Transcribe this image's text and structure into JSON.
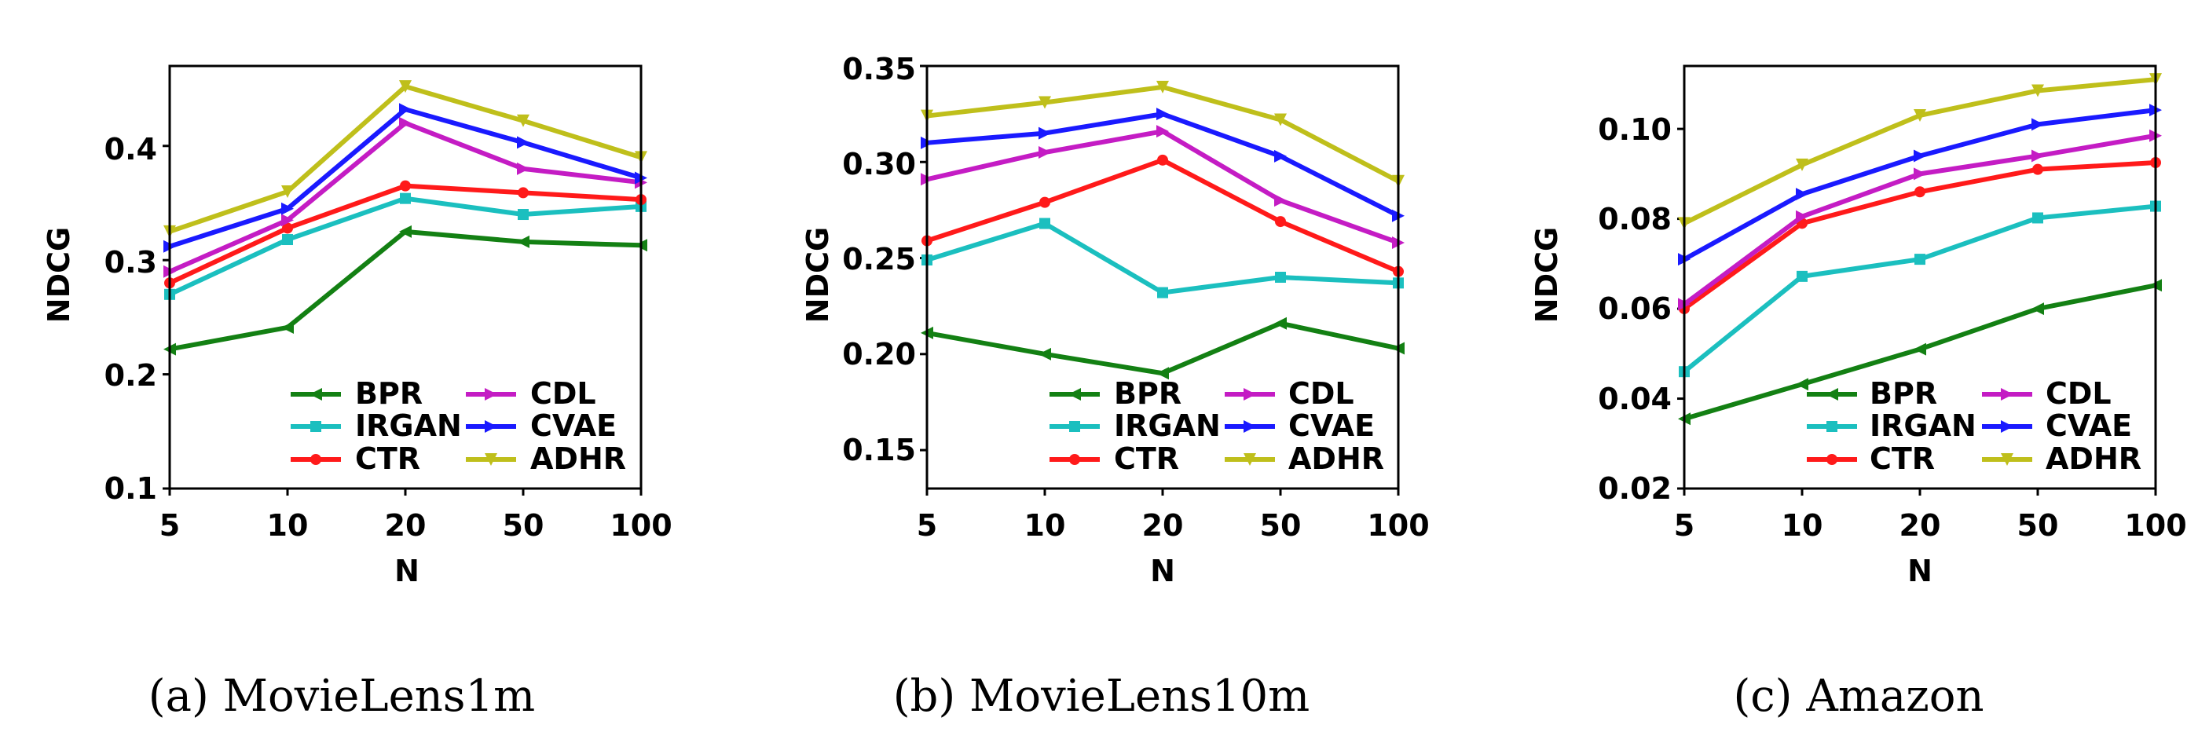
{
  "chart_data": [
    {
      "type": "line",
      "caption": "(a) MovieLens1m",
      "xlabel": "N",
      "ylabel": "NDCG",
      "categories": [
        "5",
        "10",
        "20",
        "50",
        "100"
      ],
      "ylim": [
        0.1,
        0.47
      ],
      "yticks": [
        0.1,
        0.2,
        0.3,
        0.4
      ],
      "ytick_labels": [
        "0.1",
        "0.2",
        "0.3",
        "0.4"
      ],
      "legend_location": "bottom-right",
      "series": [
        {
          "name": "BPR",
          "color": "#138013",
          "marker": "triangle-left",
          "values": [
            0.222,
            0.241,
            0.325,
            0.316,
            0.313
          ]
        },
        {
          "name": "IRGAN",
          "color": "#1bbfbf",
          "marker": "square",
          "values": [
            0.27,
            0.318,
            0.354,
            0.34,
            0.347
          ]
        },
        {
          "name": "CTR",
          "color": "#ff1a1a",
          "marker": "circle",
          "values": [
            0.28,
            0.328,
            0.365,
            0.359,
            0.353
          ]
        },
        {
          "name": "CDL",
          "color": "#c41cc4",
          "marker": "triangle-right",
          "values": [
            0.29,
            0.335,
            0.42,
            0.38,
            0.368
          ]
        },
        {
          "name": "CVAE",
          "color": "#1a1aff",
          "marker": "triangle-right",
          "values": [
            0.312,
            0.345,
            0.432,
            0.403,
            0.372
          ]
        },
        {
          "name": "ADHR",
          "color": "#bfbf1b",
          "marker": "triangle-down",
          "values": [
            0.325,
            0.36,
            0.452,
            0.422,
            0.39
          ]
        }
      ]
    },
    {
      "type": "line",
      "caption": "(b) MovieLens10m",
      "xlabel": "N",
      "ylabel": "NDCG",
      "categories": [
        "5",
        "10",
        "20",
        "50",
        "100"
      ],
      "ylim": [
        0.13,
        0.35
      ],
      "yticks": [
        0.15,
        0.2,
        0.25,
        0.3,
        0.35
      ],
      "ytick_labels": [
        "0.15",
        "0.20",
        "0.25",
        "0.30",
        "0.35"
      ],
      "legend_location": "bottom-right",
      "series": [
        {
          "name": "BPR",
          "color": "#138013",
          "marker": "triangle-left",
          "values": [
            0.211,
            0.2,
            0.19,
            0.216,
            0.203
          ]
        },
        {
          "name": "IRGAN",
          "color": "#1bbfbf",
          "marker": "square",
          "values": [
            0.249,
            0.268,
            0.232,
            0.24,
            0.237
          ]
        },
        {
          "name": "CTR",
          "color": "#ff1a1a",
          "marker": "circle",
          "values": [
            0.259,
            0.279,
            0.301,
            0.269,
            0.243
          ]
        },
        {
          "name": "CDL",
          "color": "#c41cc4",
          "marker": "triangle-right",
          "values": [
            0.291,
            0.305,
            0.316,
            0.28,
            0.258
          ]
        },
        {
          "name": "CVAE",
          "color": "#1a1aff",
          "marker": "triangle-right",
          "values": [
            0.31,
            0.315,
            0.325,
            0.303,
            0.272
          ]
        },
        {
          "name": "ADHR",
          "color": "#bfbf1b",
          "marker": "triangle-down",
          "values": [
            0.324,
            0.331,
            0.339,
            0.322,
            0.29
          ]
        }
      ]
    },
    {
      "type": "line",
      "caption": "(c) Amazon",
      "xlabel": "N",
      "ylabel": "NDCG",
      "categories": [
        "5",
        "10",
        "20",
        "50",
        "100"
      ],
      "ylim": [
        0.02,
        0.114
      ],
      "yticks": [
        0.02,
        0.04,
        0.06,
        0.08,
        0.1
      ],
      "ytick_labels": [
        "0.02",
        "0.04",
        "0.06",
        "0.08",
        "0.10"
      ],
      "legend_location": "bottom-right",
      "series": [
        {
          "name": "BPR",
          "color": "#138013",
          "marker": "triangle-left",
          "values": [
            0.0355,
            0.0432,
            0.051,
            0.06,
            0.0652
          ]
        },
        {
          "name": "IRGAN",
          "color": "#1bbfbf",
          "marker": "square",
          "values": [
            0.046,
            0.0672,
            0.071,
            0.0802,
            0.0828
          ]
        },
        {
          "name": "CTR",
          "color": "#ff1a1a",
          "marker": "circle",
          "values": [
            0.06,
            0.079,
            0.086,
            0.091,
            0.0925
          ]
        },
        {
          "name": "CDL",
          "color": "#c41cc4",
          "marker": "triangle-right",
          "values": [
            0.061,
            0.0805,
            0.09,
            0.094,
            0.0985
          ]
        },
        {
          "name": "CVAE",
          "color": "#1a1aff",
          "marker": "triangle-right",
          "values": [
            0.071,
            0.0855,
            0.094,
            0.101,
            0.1042
          ]
        },
        {
          "name": "ADHR",
          "color": "#bfbf1b",
          "marker": "triangle-down",
          "values": [
            0.079,
            0.092,
            0.103,
            0.1085,
            0.111
          ]
        }
      ]
    }
  ]
}
